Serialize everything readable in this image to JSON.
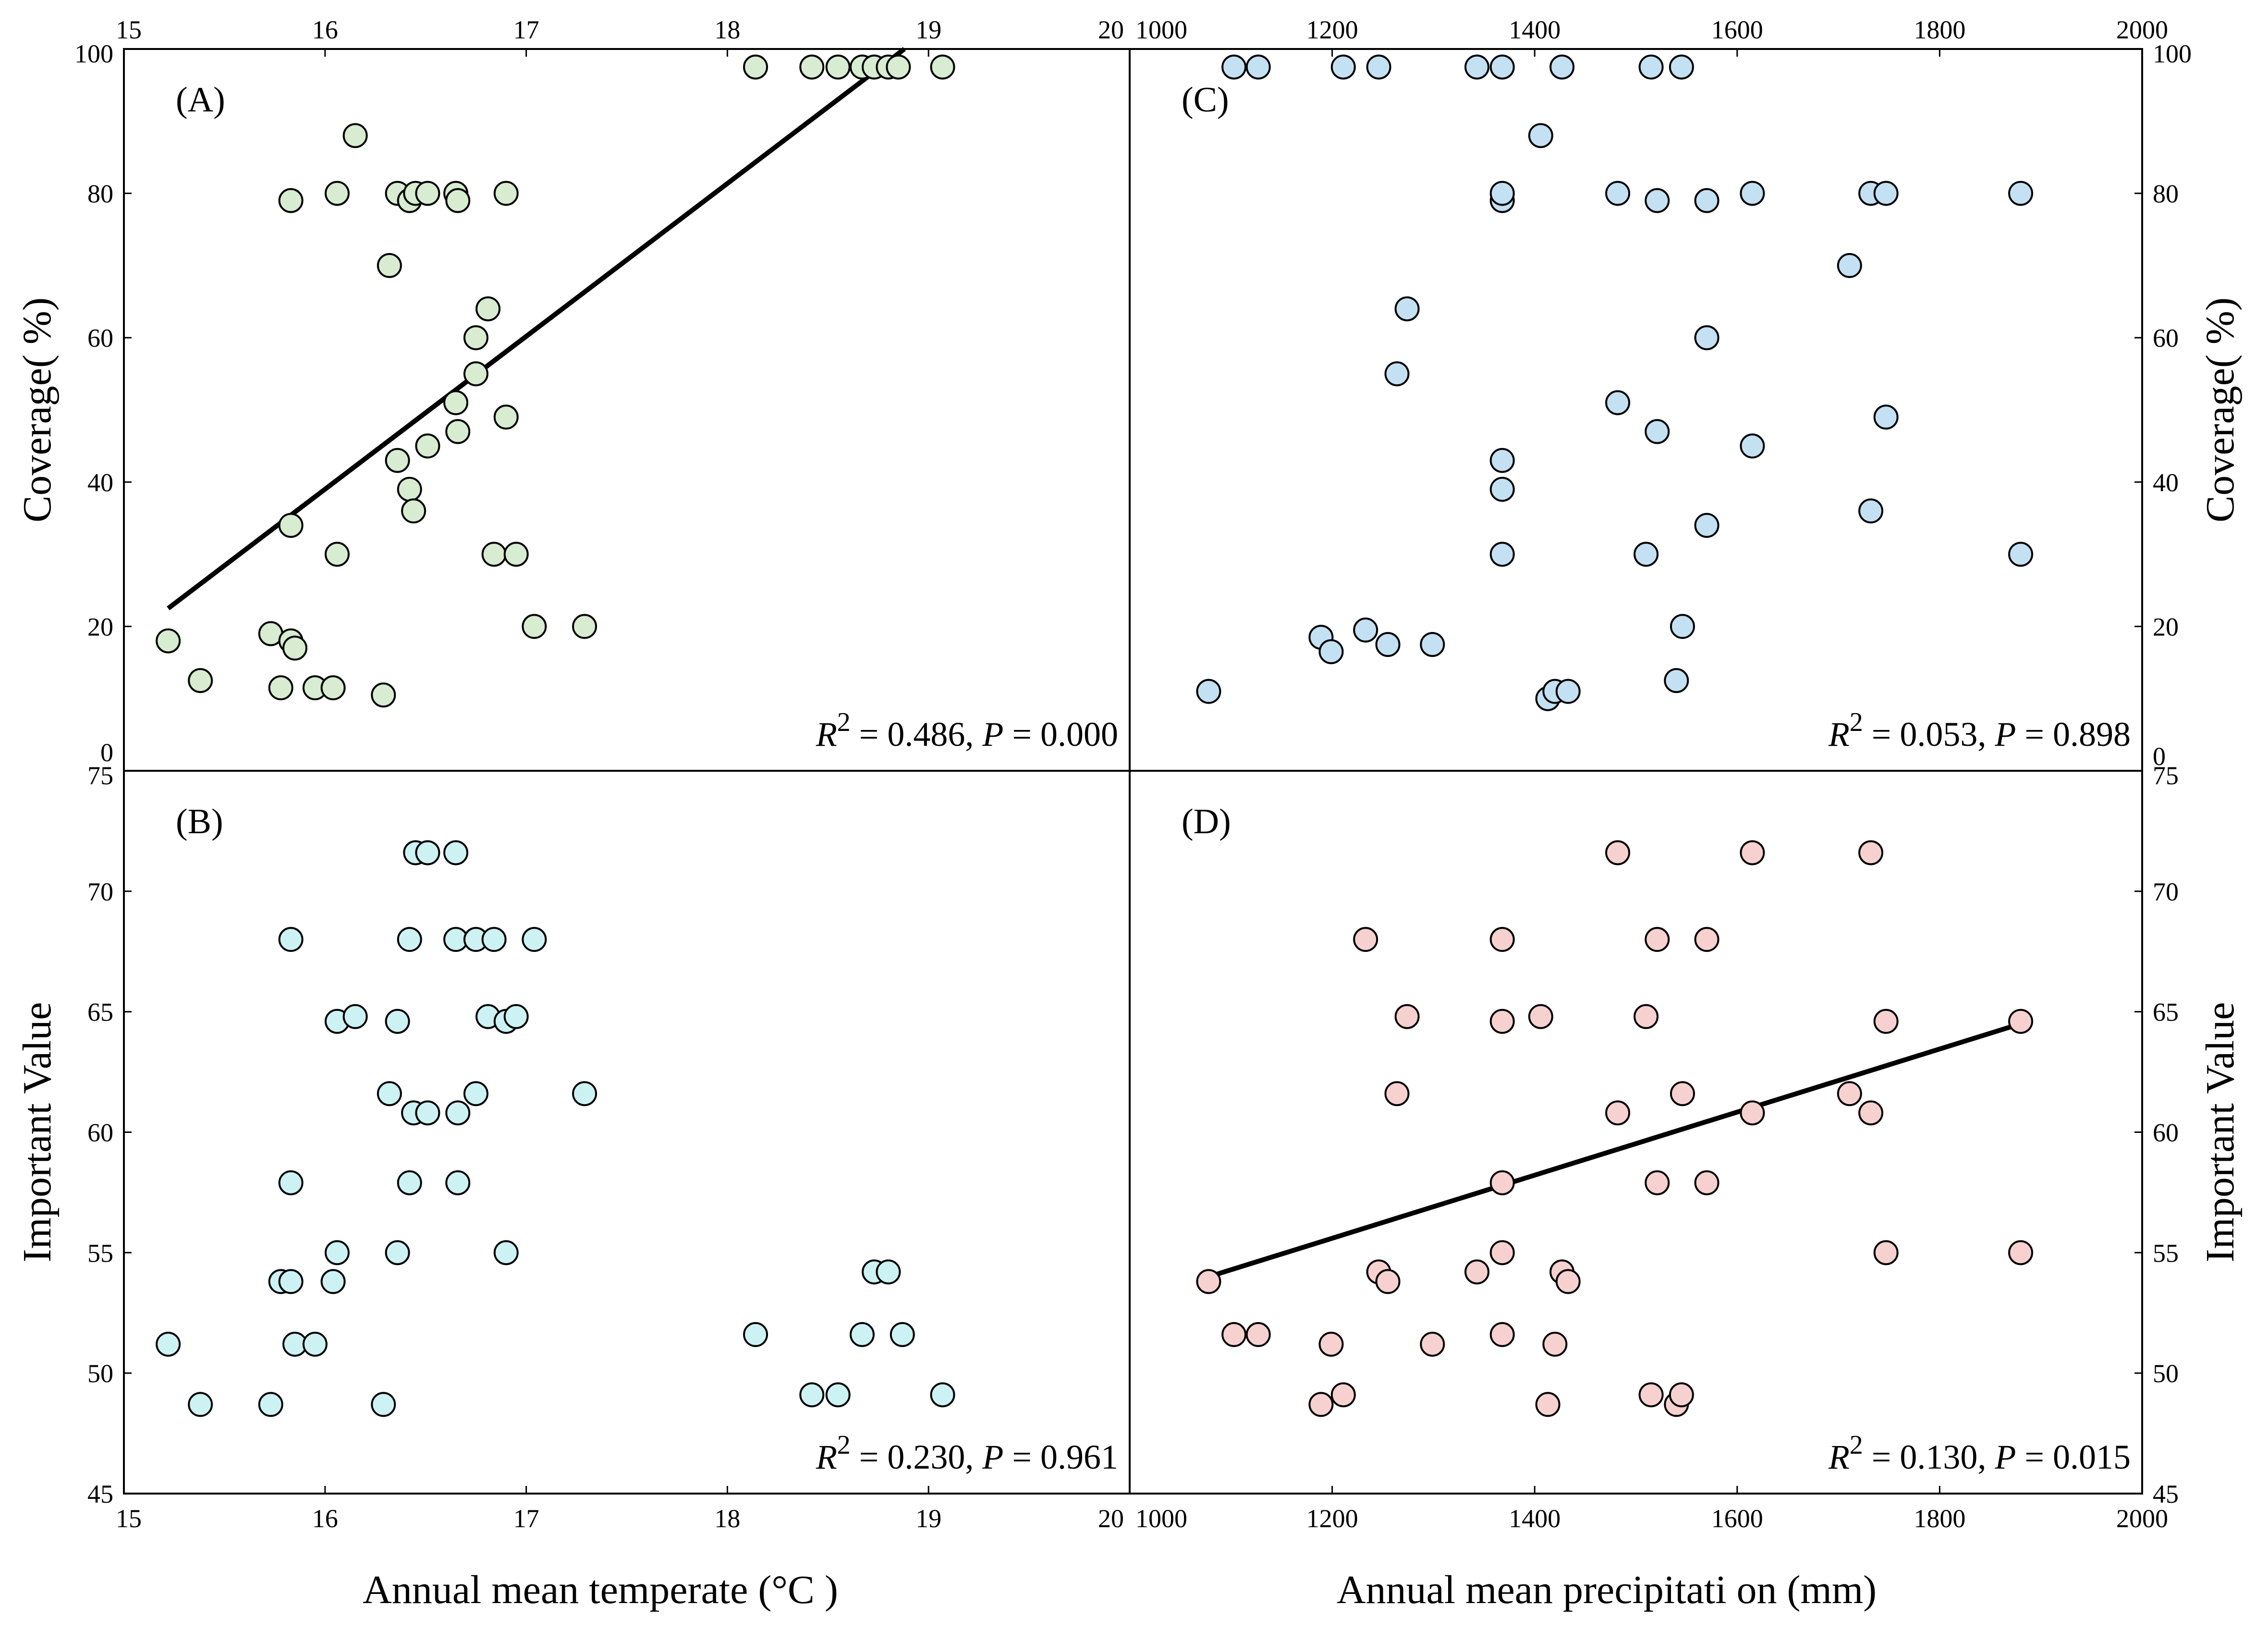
{
  "figure": {
    "xlabel_temperature": "Annual mean temperate (°C )",
    "xlabel_precipitation": "Annual mean precipitati on (mm)"
  },
  "chart_data": [
    {
      "id": "A",
      "type": "scatter",
      "label": "(A)",
      "xlabel": "Annual mean temperate (°C )",
      "ylabel": "Coverage( %)",
      "xlim": [
        15,
        20
      ],
      "ylim": [
        0,
        100
      ],
      "xticks": [
        15,
        16,
        17,
        18,
        19,
        20
      ],
      "yticks": [
        0,
        20,
        40,
        60,
        80,
        100
      ],
      "point_color": "#d7ecd0",
      "stat_text": {
        "r2_label": "R",
        "r2_sup": "2",
        "r2_value": "= 0.486,",
        "p_label": "P",
        "p_value": "= 0.000"
      },
      "trendline": {
        "x": [
          15.22,
          18.88
        ],
        "y": [
          22.5,
          100
        ]
      },
      "points": [
        [
          15.22,
          18
        ],
        [
          15.38,
          12.5
        ],
        [
          15.73,
          19
        ],
        [
          15.78,
          11.5
        ],
        [
          15.83,
          18
        ],
        [
          15.85,
          17
        ],
        [
          15.83,
          79
        ],
        [
          15.83,
          34
        ],
        [
          15.95,
          11.5
        ],
        [
          16.04,
          11.5
        ],
        [
          16.06,
          80
        ],
        [
          16.06,
          30
        ],
        [
          16.15,
          88
        ],
        [
          16.29,
          10.5
        ],
        [
          16.32,
          70
        ],
        [
          16.36,
          80
        ],
        [
          16.36,
          43
        ],
        [
          16.42,
          79
        ],
        [
          16.42,
          39
        ],
        [
          16.44,
          36
        ],
        [
          16.45,
          80
        ],
        [
          16.51,
          80
        ],
        [
          16.51,
          45
        ],
        [
          16.65,
          80
        ],
        [
          16.66,
          79
        ],
        [
          16.65,
          51
        ],
        [
          16.66,
          47
        ],
        [
          16.75,
          60
        ],
        [
          16.75,
          55
        ],
        [
          16.81,
          64
        ],
        [
          16.84,
          30
        ],
        [
          16.9,
          80
        ],
        [
          16.9,
          49
        ],
        [
          16.95,
          30
        ],
        [
          17.04,
          20
        ],
        [
          17.29,
          20
        ],
        [
          18.14,
          97.5
        ],
        [
          18.42,
          97.5
        ],
        [
          18.55,
          97.5
        ],
        [
          18.67,
          97.5
        ],
        [
          18.73,
          97.5
        ],
        [
          18.8,
          97.5
        ],
        [
          18.85,
          97.5
        ],
        [
          19.07,
          97.5
        ]
      ]
    },
    {
      "id": "B",
      "type": "scatter",
      "label": "(B)",
      "xlabel": "Annual mean temperate (°C )",
      "ylabel": "Important Value",
      "xlim": [
        15,
        20
      ],
      "ylim": [
        45,
        75
      ],
      "xticks": [
        15,
        16,
        17,
        18,
        19,
        20
      ],
      "yticks": [
        45,
        50,
        55,
        60,
        65,
        70,
        75
      ],
      "point_color": "#cdf2f4",
      "stat_text": {
        "r2_label": "R",
        "r2_sup": "2",
        "r2_value": "= 0.230,",
        "p_label": "P",
        "p_value": "= 0.961"
      },
      "points": [
        [
          15.22,
          51.2
        ],
        [
          15.38,
          48.7
        ],
        [
          15.73,
          48.7
        ],
        [
          15.78,
          53.8
        ],
        [
          15.83,
          53.8
        ],
        [
          15.85,
          51.2
        ],
        [
          15.83,
          68
        ],
        [
          15.83,
          57.9
        ],
        [
          15.95,
          51.2
        ],
        [
          16.04,
          53.8
        ],
        [
          16.06,
          64.6
        ],
        [
          16.06,
          55
        ],
        [
          16.15,
          64.8
        ],
        [
          16.29,
          48.7
        ],
        [
          16.32,
          61.6
        ],
        [
          16.36,
          64.6
        ],
        [
          16.36,
          55
        ],
        [
          16.42,
          68
        ],
        [
          16.42,
          57.9
        ],
        [
          16.44,
          60.8
        ],
        [
          16.45,
          71.6
        ],
        [
          16.51,
          71.6
        ],
        [
          16.51,
          60.8
        ],
        [
          16.65,
          71.6
        ],
        [
          16.65,
          68
        ],
        [
          16.66,
          60.8
        ],
        [
          16.66,
          57.9
        ],
        [
          16.75,
          68
        ],
        [
          16.75,
          61.6
        ],
        [
          16.81,
          64.8
        ],
        [
          16.84,
          68
        ],
        [
          16.9,
          64.6
        ],
        [
          16.9,
          55
        ],
        [
          16.95,
          64.8
        ],
        [
          17.04,
          68
        ],
        [
          17.29,
          61.6
        ],
        [
          18.14,
          51.6
        ],
        [
          18.42,
          49.1
        ],
        [
          18.55,
          49.1
        ],
        [
          18.67,
          51.6
        ],
        [
          18.73,
          54.2
        ],
        [
          18.8,
          54.2
        ],
        [
          18.87,
          51.6
        ],
        [
          19.07,
          49.1
        ]
      ]
    },
    {
      "id": "C",
      "type": "scatter",
      "label": "(C)",
      "xlabel": "Annual mean precipitati on (mm)",
      "ylabel": "Coverage( %)",
      "xlim": [
        1000,
        2000
      ],
      "ylim": [
        0,
        100
      ],
      "xticks": [
        1000,
        1200,
        1400,
        1600,
        1800,
        2000
      ],
      "yticks": [
        0,
        20,
        40,
        60,
        80,
        100
      ],
      "point_color": "#c4e0f3",
      "stat_text": {
        "r2_label": "R",
        "r2_sup": "2",
        "r2_value": "= 0.053,",
        "p_label": "P",
        "p_value": "= 0.898"
      },
      "points": [
        [
          1078,
          11
        ],
        [
          1103,
          97.5
        ],
        [
          1127,
          97.5
        ],
        [
          1189,
          18.5
        ],
        [
          1199,
          16.5
        ],
        [
          1211,
          97.5
        ],
        [
          1233,
          19.5
        ],
        [
          1246,
          97.5
        ],
        [
          1255,
          17.5
        ],
        [
          1264,
          55
        ],
        [
          1274,
          64
        ],
        [
          1299,
          17.5
        ],
        [
          1343,
          97.5
        ],
        [
          1368,
          97.5
        ],
        [
          1368,
          79
        ],
        [
          1368,
          80
        ],
        [
          1368,
          43
        ],
        [
          1368,
          39
        ],
        [
          1368,
          30
        ],
        [
          1406,
          88
        ],
        [
          1413,
          10
        ],
        [
          1420,
          11
        ],
        [
          1427,
          97.5
        ],
        [
          1433,
          11
        ],
        [
          1482,
          80
        ],
        [
          1482,
          51
        ],
        [
          1510,
          30
        ],
        [
          1515,
          97.5
        ],
        [
          1521,
          79
        ],
        [
          1521,
          47
        ],
        [
          1540,
          12.5
        ],
        [
          1545,
          97.5
        ],
        [
          1546,
          20
        ],
        [
          1570,
          79
        ],
        [
          1570,
          60
        ],
        [
          1570,
          34
        ],
        [
          1615,
          80
        ],
        [
          1615,
          45
        ],
        [
          1711,
          70
        ],
        [
          1732,
          80
        ],
        [
          1732,
          36
        ],
        [
          1747,
          80
        ],
        [
          1747,
          49
        ],
        [
          1880,
          80
        ],
        [
          1880,
          30
        ]
      ]
    },
    {
      "id": "D",
      "type": "scatter",
      "label": "(D)",
      "xlabel": "Annual mean precipitati on (mm)",
      "ylabel": "Important Value",
      "xlim": [
        1000,
        2000
      ],
      "ylim": [
        45,
        75
      ],
      "xticks": [
        1000,
        1200,
        1400,
        1600,
        1800,
        2000
      ],
      "yticks": [
        45,
        50,
        55,
        60,
        65,
        70,
        75
      ],
      "point_color": "#f6d1cf",
      "stat_text": {
        "r2_label": "R",
        "r2_sup": "2",
        "r2_value": "= 0.130,",
        "p_label": "P",
        "p_value": "= 0.015"
      },
      "trendline": {
        "x": [
          1078,
          1880
        ],
        "y": [
          54,
          64.5
        ]
      },
      "points": [
        [
          1078,
          53.8
        ],
        [
          1103,
          51.6
        ],
        [
          1127,
          51.6
        ],
        [
          1189,
          48.7
        ],
        [
          1199,
          51.2
        ],
        [
          1211,
          49.1
        ],
        [
          1233,
          68
        ],
        [
          1246,
          54.2
        ],
        [
          1255,
          53.8
        ],
        [
          1264,
          61.6
        ],
        [
          1274,
          64.8
        ],
        [
          1299,
          51.2
        ],
        [
          1343,
          54.2
        ],
        [
          1368,
          68
        ],
        [
          1368,
          64.6
        ],
        [
          1368,
          57.9
        ],
        [
          1368,
          55
        ],
        [
          1368,
          51.6
        ],
        [
          1406,
          64.8
        ],
        [
          1413,
          48.7
        ],
        [
          1420,
          51.2
        ],
        [
          1427,
          54.2
        ],
        [
          1433,
          53.8
        ],
        [
          1482,
          71.6
        ],
        [
          1482,
          60.8
        ],
        [
          1510,
          64.8
        ],
        [
          1515,
          49.1
        ],
        [
          1521,
          68
        ],
        [
          1521,
          57.9
        ],
        [
          1540,
          48.7
        ],
        [
          1545,
          49.1
        ],
        [
          1546,
          61.6
        ],
        [
          1570,
          68
        ],
        [
          1570,
          57.9
        ],
        [
          1615,
          71.6
        ],
        [
          1615,
          60.8
        ],
        [
          1711,
          61.6
        ],
        [
          1732,
          71.6
        ],
        [
          1732,
          60.8
        ],
        [
          1747,
          64.6
        ],
        [
          1747,
          55
        ],
        [
          1880,
          64.6
        ],
        [
          1880,
          55
        ]
      ]
    }
  ]
}
